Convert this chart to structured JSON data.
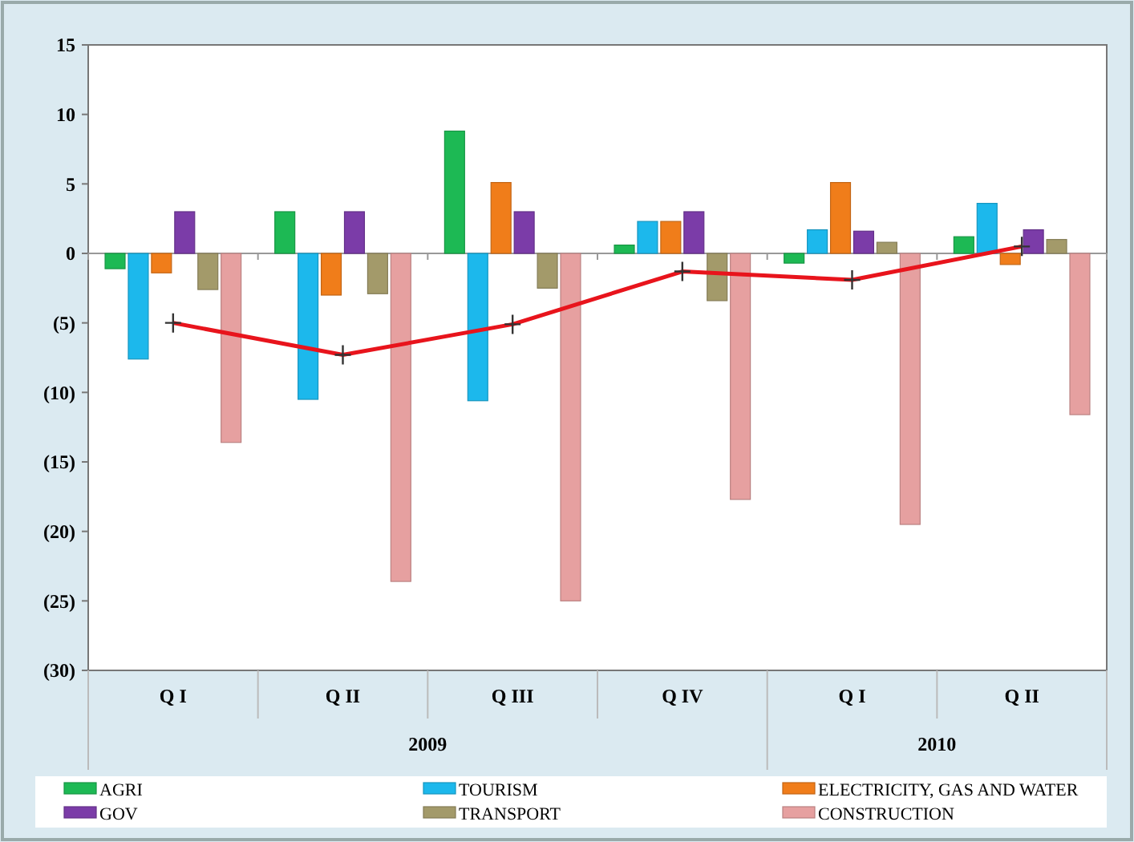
{
  "chart_data": {
    "type": "bar",
    "categories": [
      "Q I",
      "Q II",
      "Q III",
      "Q IV",
      "Q I",
      "Q II"
    ],
    "annotations": [
      "2009",
      "2010"
    ],
    "series": [
      {
        "name": "AGRI",
        "color": "#1db954",
        "values": [
          -1.1,
          3.0,
          8.8,
          0.6,
          -0.7,
          1.2
        ]
      },
      {
        "name": "TOURISM",
        "color": "#1cb8ec",
        "values": [
          -7.6,
          -10.5,
          -10.6,
          2.3,
          1.7,
          3.6
        ]
      },
      {
        "name": "ELECTRICITY, GAS AND WATER",
        "color": "#f07d1a",
        "values": [
          -1.4,
          -3.0,
          5.1,
          2.3,
          5.1,
          -0.8
        ]
      },
      {
        "name": "GOV",
        "color": "#7b3ca8",
        "values": [
          3.0,
          3.0,
          3.0,
          3.0,
          1.6,
          1.7
        ]
      },
      {
        "name": "TRANSPORT",
        "color": "#a39a6a",
        "values": [
          -2.6,
          -2.9,
          -2.5,
          -3.4,
          0.8,
          1.0
        ]
      },
      {
        "name": "CONSTRUCTION",
        "color": "#e6a0a0",
        "values": [
          -13.6,
          -23.6,
          -25.0,
          -17.7,
          -19.5,
          -11.6
        ]
      },
      {
        "type": "line",
        "color": "#e8141c",
        "marker": "cross",
        "values": [
          -5.0,
          -7.3,
          -5.1,
          -1.3,
          -1.9,
          0.5
        ]
      }
    ],
    "ylim": [
      -30,
      15
    ],
    "yticks": [
      {
        "value": -30,
        "label": "(30)"
      },
      {
        "value": -25,
        "label": "(25)"
      },
      {
        "value": -20,
        "label": "(20)"
      },
      {
        "value": -15,
        "label": "(15)"
      },
      {
        "value": -10,
        "label": "(10)"
      },
      {
        "value": -5,
        "label": "(5)"
      },
      0,
      5,
      10,
      15
    ],
    "legend": "bottom"
  }
}
